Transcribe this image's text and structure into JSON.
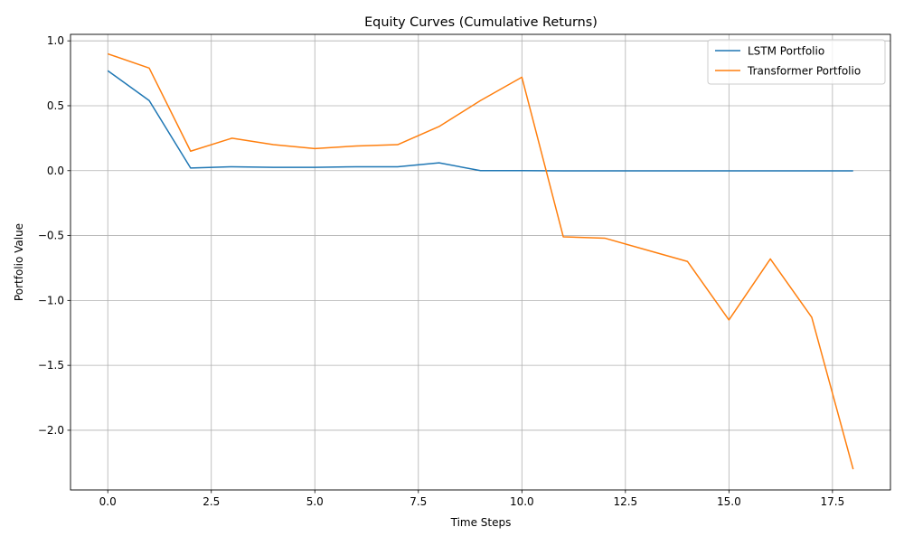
{
  "chart_data": {
    "type": "line",
    "title": "Equity Curves (Cumulative Returns)",
    "xlabel": "Time Steps",
    "ylabel": "Portfolio Value",
    "xlim": [
      -0.9,
      18.9
    ],
    "ylim": [
      -2.46,
      1.05
    ],
    "xticks": [
      0.0,
      2.5,
      5.0,
      7.5,
      10.0,
      12.5,
      15.0,
      17.5
    ],
    "xtick_labels": [
      "0.0",
      "2.5",
      "5.0",
      "7.5",
      "10.0",
      "12.5",
      "15.0",
      "17.5"
    ],
    "yticks": [
      1.0,
      0.5,
      0.0,
      -0.5,
      -1.0,
      -1.5,
      -2.0
    ],
    "ytick_labels": [
      "1.0",
      "0.5",
      "0.0",
      "−0.5",
      "−1.0",
      "−1.5",
      "−2.0"
    ],
    "grid": true,
    "legend_position": "top-right",
    "x": [
      0,
      1,
      2,
      3,
      4,
      5,
      6,
      7,
      8,
      9,
      10,
      11,
      12,
      13,
      14,
      15,
      16,
      17,
      18
    ],
    "series": [
      {
        "name": "LSTM Portfolio",
        "color": "#1f77b4",
        "values": [
          0.77,
          0.54,
          0.02,
          0.03,
          0.025,
          0.025,
          0.03,
          0.03,
          0.06,
          0.0,
          0.0,
          -0.002,
          -0.002,
          -0.002,
          -0.002,
          -0.002,
          -0.002,
          -0.002,
          -0.002
        ]
      },
      {
        "name": "Transformer Portfolio",
        "color": "#ff7f0e",
        "values": [
          0.9,
          0.79,
          0.15,
          0.25,
          0.2,
          0.17,
          0.19,
          0.2,
          0.34,
          0.54,
          0.72,
          -0.51,
          -0.52,
          -0.61,
          -0.7,
          -1.15,
          -0.68,
          -1.13,
          -2.3
        ]
      }
    ]
  }
}
